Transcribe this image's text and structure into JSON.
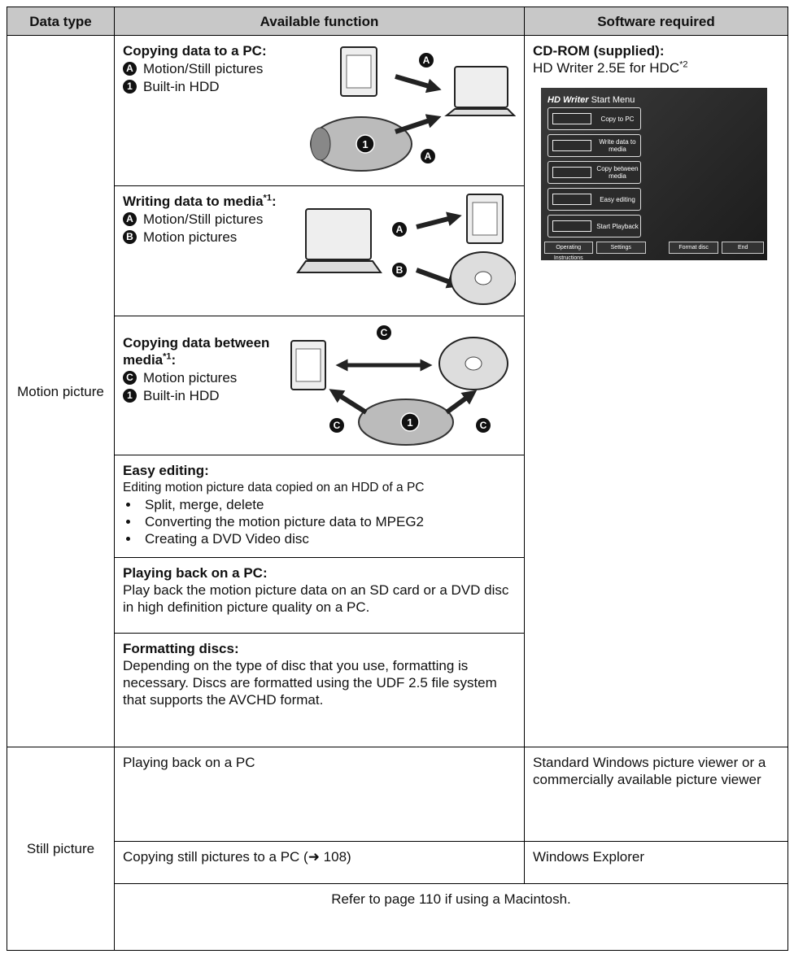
{
  "table": {
    "header": [
      "Data type",
      "Available function",
      "Software required"
    ],
    "motion_picture": {
      "label": "Motion picture",
      "software": {
        "title": "CD-ROM (supplied):",
        "name": "HD Writer 2.5E for HDC",
        "note": "*2",
        "screenshot": {
          "brand": "HD Writer",
          "title": "Start Menu",
          "buttons": [
            "Copy to PC",
            "Write data to media",
            "Copy between media",
            "Easy editing",
            "Start Playback"
          ],
          "footer": [
            "Operating Instructions",
            "Settings",
            "Format disc",
            "End"
          ]
        }
      },
      "functions": [
        {
          "title": "Copying data to a PC:",
          "items": [
            {
              "marker": "A",
              "text": "Motion/Still pictures"
            },
            {
              "marker": "1",
              "text": "Built-in HDD"
            }
          ],
          "diagram_markers": [
            "A",
            "A",
            "1"
          ]
        },
        {
          "title": "Writing data to media",
          "note": "*1",
          "suffix": ":",
          "items": [
            {
              "marker": "A",
              "text": "Motion/Still pictures"
            },
            {
              "marker": "B",
              "text": "Motion pictures"
            }
          ],
          "diagram_markers": [
            "A",
            "B"
          ]
        },
        {
          "title": "Copying data between media",
          "note": "*1",
          "suffix": ":",
          "items": [
            {
              "marker": "C",
              "text": "Motion pictures"
            },
            {
              "marker": "1",
              "text": "Built-in HDD"
            }
          ],
          "diagram_markers": [
            "C",
            "C",
            "C",
            "1"
          ]
        },
        {
          "title": "Easy editing:",
          "description": "Editing motion picture data copied on an HDD of a PC",
          "bullets": [
            "Split, merge, delete",
            "Converting the motion picture data to MPEG2",
            "Creating a DVD Video disc"
          ]
        },
        {
          "title": "Playing back on a PC:",
          "description": "Play back the motion picture data on an SD card or a DVD disc in high definition picture quality on a PC."
        },
        {
          "title": "Formatting discs:",
          "description": "Depending on the type of disc that you use, formatting is necessary. Discs are formatted using the UDF 2.5 file system that supports the AVCHD format."
        }
      ]
    },
    "still_picture": {
      "label": "Still picture",
      "rows": [
        {
          "function": "Playing back on a PC",
          "software": "Standard Windows picture viewer or a commercially available picture viewer"
        },
        {
          "function": "Copying still pictures to a PC (➜ 108)",
          "software": "Windows Explorer"
        }
      ],
      "note": "Refer to page 110 if using a Macintosh."
    }
  }
}
